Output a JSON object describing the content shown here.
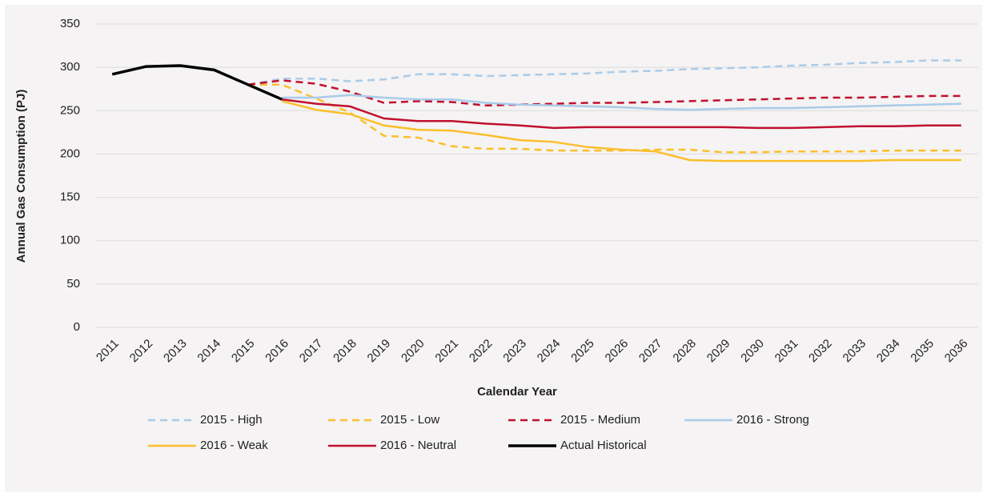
{
  "chart_data": {
    "type": "line",
    "y_label": "Annual Gas Consumption (PJ)",
    "x_label": "Calendar Year",
    "categories": [
      "2011",
      "2012",
      "2013",
      "2014",
      "2015",
      "2016",
      "2017",
      "2018",
      "2019",
      "2020",
      "2021",
      "2022",
      "2023",
      "2024",
      "2025",
      "2026",
      "2027",
      "2028",
      "2029",
      "2030",
      "2031",
      "2032",
      "2033",
      "2034",
      "2035",
      "2036"
    ],
    "ylim": [
      0,
      350
    ],
    "yticks": [
      0,
      50,
      100,
      150,
      200,
      250,
      300,
      350
    ],
    "grid": true,
    "legend": "bottom",
    "series": [
      {
        "name": "2015 - High",
        "color": "#a9cbea",
        "dashed": true,
        "values": [
          null,
          null,
          null,
          null,
          280,
          287,
          287,
          284,
          286,
          292,
          292,
          290,
          291,
          292,
          293,
          295,
          296,
          298,
          299,
          300,
          302,
          303,
          305,
          306,
          308,
          308
        ]
      },
      {
        "name": "2015 - Low",
        "color": "#fbbf2c",
        "dashed": true,
        "values": [
          null,
          null,
          null,
          null,
          280,
          280,
          264,
          248,
          221,
          219,
          209,
          206,
          206,
          204,
          204,
          204,
          205,
          205,
          202,
          202,
          203,
          203,
          203,
          204,
          204,
          204
        ]
      },
      {
        "name": "2015 - Medium",
        "color": "#c0102f",
        "dashed": true,
        "values": [
          null,
          null,
          null,
          null,
          280,
          285,
          281,
          272,
          259,
          261,
          260,
          256,
          257,
          258,
          259,
          259,
          260,
          261,
          262,
          263,
          264,
          265,
          265,
          266,
          267,
          267
        ]
      },
      {
        "name": "2016 - Strong",
        "color": "#a9cbea",
        "dashed": false,
        "values": [
          null,
          null,
          null,
          null,
          null,
          265,
          265,
          268,
          265,
          263,
          263,
          259,
          257,
          256,
          255,
          254,
          252,
          251,
          252,
          253,
          253,
          254,
          255,
          256,
          257,
          258
        ]
      },
      {
        "name": "2016 - Weak",
        "color": "#fbbf2c",
        "dashed": false,
        "values": [
          null,
          null,
          null,
          null,
          null,
          261,
          251,
          246,
          233,
          228,
          227,
          222,
          216,
          214,
          208,
          205,
          203,
          193,
          192,
          192,
          192,
          192,
          192,
          193,
          193,
          193
        ]
      },
      {
        "name": "2016 - Neutral",
        "color": "#c0102f",
        "dashed": false,
        "values": [
          null,
          null,
          null,
          null,
          null,
          263,
          258,
          255,
          241,
          238,
          238,
          235,
          233,
          230,
          231,
          231,
          231,
          231,
          231,
          230,
          230,
          231,
          232,
          232,
          233,
          233
        ]
      },
      {
        "name": "Actual Historical",
        "color": "#000000",
        "dashed": false,
        "values": [
          292,
          301,
          302,
          297,
          280,
          263,
          null,
          null,
          null,
          null,
          null,
          null,
          null,
          null,
          null,
          null,
          null,
          null,
          null,
          null,
          null,
          null,
          null,
          null,
          null,
          null
        ]
      }
    ]
  }
}
